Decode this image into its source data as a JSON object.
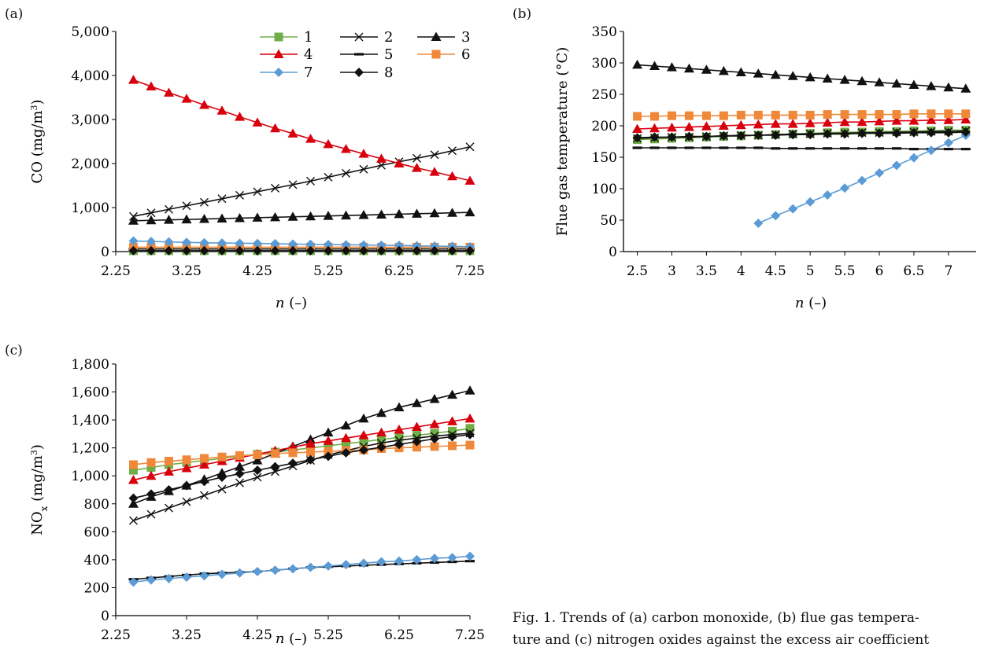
{
  "figure": {
    "caption_line1": "Fig. 1. Trends of (a) carbon monoxide, (b) flue gas tempera-",
    "caption_line2": "ture and (c) nitrogen oxides against the excess air coefficient",
    "colors": {
      "s1": "#70ad47",
      "s2": "#111111",
      "s3": "#111111",
      "s4": "#d9000d",
      "s5": "#111111",
      "s6": "#f0883a",
      "s7": "#5b9bd5",
      "s8": "#111111"
    },
    "markers": {
      "s1": "square",
      "s2": "x",
      "s3": "triangle",
      "s4": "triangle",
      "s5": "dash",
      "s6": "square",
      "s7": "diamond",
      "s8": "diamond"
    }
  },
  "chart_data": [
    {
      "panel": "(a)",
      "type": "line",
      "xlabel": "n (–)",
      "ylabel": "CO (mg/m3)",
      "xlim": [
        2.25,
        7.25
      ],
      "ylim": [
        0,
        5000
      ],
      "x_ticks": [
        "2.25",
        "3.25",
        "4.25",
        "5.25",
        "6.25",
        "7.25"
      ],
      "y_ticks": [
        "0",
        "1,000",
        "2,000",
        "3,000",
        "4,000",
        "5,000"
      ],
      "legend_position": "top-right",
      "x": [
        2.5,
        2.75,
        3.0,
        3.25,
        3.5,
        3.75,
        4.0,
        4.25,
        4.5,
        4.75,
        5.0,
        5.25,
        5.5,
        5.75,
        6.0,
        6.25,
        6.5,
        6.75,
        7.0,
        7.25
      ],
      "series": [
        {
          "name": "1",
          "values": [
            20,
            20,
            20,
            20,
            20,
            20,
            20,
            20,
            20,
            20,
            20,
            20,
            20,
            20,
            20,
            20,
            20,
            20,
            20,
            20
          ]
        },
        {
          "name": "2",
          "values": [
            800,
            880,
            960,
            1040,
            1120,
            1200,
            1280,
            1360,
            1440,
            1520,
            1600,
            1690,
            1780,
            1870,
            1960,
            2040,
            2120,
            2200,
            2290,
            2380
          ]
        },
        {
          "name": "3",
          "values": [
            700,
            710,
            720,
            730,
            740,
            750,
            760,
            770,
            780,
            790,
            800,
            810,
            820,
            830,
            840,
            850,
            860,
            870,
            880,
            890
          ]
        },
        {
          "name": "4",
          "values": [
            3900,
            3750,
            3610,
            3470,
            3330,
            3200,
            3060,
            2930,
            2800,
            2680,
            2560,
            2440,
            2330,
            2220,
            2110,
            2000,
            1900,
            1810,
            1710,
            1610
          ]
        },
        {
          "name": "5",
          "values": [
            60,
            60,
            60,
            60,
            60,
            60,
            60,
            60,
            60,
            60,
            60,
            60,
            60,
            60,
            60,
            60,
            60,
            60,
            60,
            60
          ]
        },
        {
          "name": "6",
          "values": [
            100,
            100,
            100,
            100,
            100,
            100,
            100,
            100,
            100,
            100,
            100,
            100,
            100,
            100,
            100,
            100,
            100,
            100,
            100,
            100
          ]
        },
        {
          "name": "7",
          "values": [
            240,
            230,
            220,
            210,
            200,
            195,
            190,
            185,
            180,
            170,
            165,
            160,
            155,
            150,
            145,
            140,
            130,
            125,
            120,
            110
          ]
        },
        {
          "name": "8",
          "values": [
            20,
            20,
            20,
            20,
            20,
            20,
            20,
            20,
            20,
            20,
            20,
            20,
            20,
            20,
            20,
            20,
            20,
            20,
            20,
            20
          ]
        }
      ]
    },
    {
      "panel": "(b)",
      "type": "line",
      "xlabel": "n (–)",
      "ylabel": "Flue gas temperature (°C)",
      "xlim": [
        2.3,
        7.4
      ],
      "ylim": [
        0,
        350
      ],
      "x_ticks": [
        "2.5",
        "3",
        "3.5",
        "4",
        "4.5",
        "5",
        "5.5",
        "6",
        "6.5",
        "7"
      ],
      "x_tick_values": [
        2.5,
        3,
        3.5,
        4,
        4.5,
        5,
        5.5,
        6,
        6.5,
        7
      ],
      "y_ticks": [
        "0",
        "50",
        "100",
        "150",
        "200",
        "250",
        "300",
        "350"
      ],
      "x": [
        2.5,
        2.75,
        3.0,
        3.25,
        3.5,
        3.75,
        4.0,
        4.25,
        4.5,
        4.75,
        5.0,
        5.25,
        5.5,
        5.75,
        6.0,
        6.25,
        6.5,
        6.75,
        7.0,
        7.25
      ],
      "series": [
        {
          "name": "1",
          "values": [
            178,
            179,
            180,
            181,
            182,
            183,
            184,
            185,
            186,
            187,
            188,
            189,
            190,
            190,
            191,
            191,
            192,
            192,
            193,
            193
          ]
        },
        {
          "name": "2",
          "values": [
            180,
            181,
            182,
            182,
            183,
            184,
            185,
            185,
            186,
            187,
            187,
            188,
            188,
            189,
            189,
            190,
            190,
            191,
            191,
            192
          ]
        },
        {
          "name": "3",
          "values": [
            297,
            295,
            293,
            291,
            289,
            287,
            285,
            283,
            281,
            279,
            277,
            275,
            273,
            271,
            269,
            267,
            265,
            263,
            261,
            259
          ]
        },
        {
          "name": "4",
          "values": [
            195,
            196,
            197,
            198,
            199,
            200,
            201,
            202,
            203,
            203,
            204,
            205,
            206,
            206,
            207,
            208,
            208,
            209,
            209,
            210
          ]
        },
        {
          "name": "5",
          "values": [
            165,
            165,
            165,
            165,
            165,
            165,
            165,
            165,
            164,
            164,
            164,
            164,
            164,
            164,
            164,
            164,
            163,
            163,
            163,
            163
          ]
        },
        {
          "name": "6",
          "values": [
            215,
            215,
            216,
            216,
            216,
            216,
            217,
            217,
            217,
            217,
            217,
            218,
            218,
            218,
            218,
            218,
            219,
            219,
            219,
            219
          ]
        },
        {
          "name": "7",
          "values": [
            null,
            null,
            null,
            null,
            null,
            null,
            null,
            45,
            57,
            68,
            79,
            90,
            101,
            113,
            125,
            137,
            149,
            161,
            173,
            185
          ]
        },
        {
          "name": "8",
          "values": [
            181,
            182,
            182,
            183,
            183,
            184,
            184,
            185,
            185,
            186,
            186,
            187,
            187,
            188,
            188,
            188,
            189,
            189,
            189,
            190
          ]
        }
      ]
    },
    {
      "panel": "(c)",
      "type": "line",
      "xlabel": "n (–)",
      "ylabel": "NOx (mg/m3)",
      "xlim": [
        2.25,
        7.25
      ],
      "ylim": [
        0,
        1800
      ],
      "x_ticks": [
        "2.25",
        "3.25",
        "4.25",
        "5.25",
        "6.25",
        "7.25"
      ],
      "y_ticks": [
        "0",
        "200",
        "400",
        "600",
        "800",
        "1,000",
        "1,200",
        "1,400",
        "1,600",
        "1,800"
      ],
      "x": [
        2.5,
        2.75,
        3.0,
        3.25,
        3.5,
        3.75,
        4.0,
        4.25,
        4.5,
        4.75,
        5.0,
        5.25,
        5.5,
        5.75,
        6.0,
        6.25,
        6.5,
        6.75,
        7.0,
        7.25
      ],
      "series": [
        {
          "name": "1",
          "values": [
            1040,
            1060,
            1080,
            1095,
            1110,
            1125,
            1140,
            1155,
            1170,
            1185,
            1200,
            1215,
            1230,
            1245,
            1260,
            1275,
            1290,
            1305,
            1320,
            1340
          ]
        },
        {
          "name": "2",
          "values": [
            680,
            725,
            770,
            815,
            860,
            905,
            950,
            990,
            1030,
            1070,
            1110,
            1150,
            1180,
            1210,
            1235,
            1255,
            1270,
            1285,
            1295,
            1305
          ]
        },
        {
          "name": "3",
          "values": [
            800,
            850,
            890,
            930,
            975,
            1020,
            1065,
            1110,
            1160,
            1210,
            1260,
            1310,
            1360,
            1410,
            1450,
            1490,
            1520,
            1550,
            1580,
            1610
          ]
        },
        {
          "name": "4",
          "values": [
            970,
            1000,
            1030,
            1055,
            1080,
            1105,
            1130,
            1155,
            1180,
            1205,
            1230,
            1250,
            1270,
            1290,
            1310,
            1330,
            1350,
            1370,
            1390,
            1410
          ]
        },
        {
          "name": "5",
          "values": [
            260,
            270,
            280,
            290,
            300,
            305,
            310,
            315,
            325,
            335,
            345,
            350,
            355,
            360,
            365,
            370,
            375,
            380,
            385,
            390
          ]
        },
        {
          "name": "6",
          "values": [
            1080,
            1095,
            1105,
            1115,
            1125,
            1135,
            1145,
            1150,
            1160,
            1165,
            1170,
            1175,
            1180,
            1185,
            1195,
            1200,
            1205,
            1210,
            1215,
            1220
          ]
        },
        {
          "name": "7",
          "values": [
            240,
            255,
            265,
            275,
            285,
            295,
            305,
            315,
            325,
            335,
            345,
            355,
            365,
            375,
            385,
            390,
            400,
            410,
            415,
            425
          ]
        },
        {
          "name": "8",
          "values": [
            840,
            870,
            900,
            930,
            960,
            990,
            1015,
            1040,
            1065,
            1090,
            1115,
            1140,
            1165,
            1185,
            1205,
            1225,
            1245,
            1265,
            1280,
            1295
          ]
        }
      ]
    }
  ]
}
